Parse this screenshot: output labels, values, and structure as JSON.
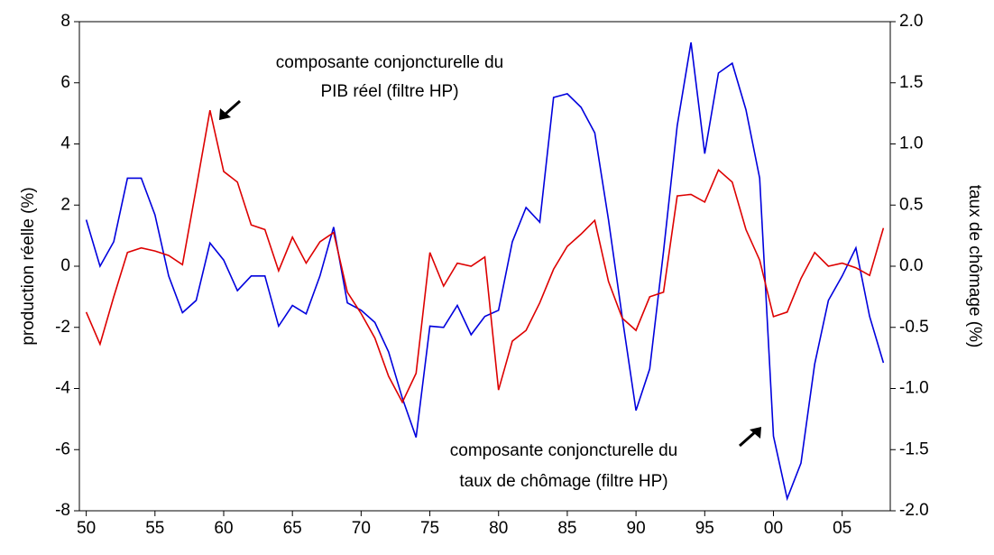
{
  "chart_data": {
    "type": "line",
    "ylabel": "production réelle (%)",
    "y2label": "taux de chômage (%)",
    "x": [
      1950,
      1951,
      1952,
      1953,
      1954,
      1955,
      1956,
      1957,
      1958,
      1959,
      1960,
      1961,
      1962,
      1963,
      1964,
      1965,
      1966,
      1967,
      1968,
      1969,
      1970,
      1971,
      1972,
      1973,
      1974,
      1975,
      1976,
      1977,
      1978,
      1979,
      1980,
      1981,
      1982,
      1983,
      1984,
      1985,
      1986,
      1987,
      1988,
      1989,
      1990,
      1991,
      1992,
      1993,
      1994,
      1995,
      1996,
      1997,
      1998,
      1999,
      2000,
      2001,
      2002,
      2003,
      2004,
      2005,
      2006,
      2007,
      2008
    ],
    "xlim": [
      1949.5,
      2008.5
    ],
    "xticks": [
      {
        "value": 1950,
        "label": "50"
      },
      {
        "value": 1955,
        "label": "55"
      },
      {
        "value": 1960,
        "label": "60"
      },
      {
        "value": 1965,
        "label": "65"
      },
      {
        "value": 1970,
        "label": "70"
      },
      {
        "value": 1975,
        "label": "75"
      },
      {
        "value": 1980,
        "label": "80"
      },
      {
        "value": 1985,
        "label": "85"
      },
      {
        "value": 1990,
        "label": "90"
      },
      {
        "value": 1995,
        "label": "95"
      },
      {
        "value": 2000,
        "label": "00"
      },
      {
        "value": 2005,
        "label": "05"
      }
    ],
    "ylim": [
      -8,
      8
    ],
    "yticks": [
      -8,
      -6,
      -4,
      -2,
      0,
      2,
      4,
      6,
      8
    ],
    "y2lim": [
      -2,
      2
    ],
    "y2ticks": [
      {
        "value": -2,
        "label": "-2.0"
      },
      {
        "value": -1.5,
        "label": "-1.5"
      },
      {
        "value": -1,
        "label": "-1.0"
      },
      {
        "value": -0.5,
        "label": "-0.5"
      },
      {
        "value": 0,
        "label": "0.0"
      },
      {
        "value": 0.5,
        "label": "0.5"
      },
      {
        "value": 1,
        "label": "1.0"
      },
      {
        "value": 1.5,
        "label": "1.5"
      },
      {
        "value": 2,
        "label": "2.0"
      }
    ],
    "series": [
      {
        "color": "#0000dd",
        "axis": "y2",
        "values": [
          0.38,
          0,
          0.2,
          0.72,
          0.72,
          0.42,
          -0.08,
          -0.38,
          -0.28,
          0.19,
          0.05,
          -0.2,
          -0.08,
          -0.08,
          -0.49,
          -0.32,
          -0.39,
          -0.08,
          0.32,
          -0.3,
          -0.36,
          -0.46,
          -0.7,
          -1.08,
          -1.4,
          -0.49,
          -0.5,
          -0.32,
          -0.56,
          -0.41,
          -0.36,
          0.2,
          0.48,
          0.36,
          1.38,
          1.41,
          1.3,
          1.09,
          0.38,
          -0.42,
          -1.18,
          -0.84,
          0.12,
          1.15,
          1.83,
          0.92,
          1.58,
          1.66,
          1.28,
          0.72,
          -1.39,
          -1.9,
          -1.61,
          -0.8,
          -0.28,
          -0.08,
          0.15,
          -0.41,
          -0.79
        ]
      },
      {
        "color": "#dd0000",
        "values": [
          -1.5,
          -2.55,
          -1.0,
          0.45,
          0.6,
          0.5,
          0.35,
          0.05,
          2.55,
          5.1,
          3.1,
          2.75,
          1.35,
          1.2,
          -0.15,
          0.95,
          0.1,
          0.8,
          1.1,
          -0.85,
          -1.55,
          -2.35,
          -3.6,
          -4.45,
          -3.5,
          0.45,
          -0.65,
          0.1,
          0.0,
          0.3,
          -4.05,
          -2.45,
          -2.1,
          -1.2,
          -0.1,
          0.65,
          1.05,
          1.5,
          -0.5,
          -1.7,
          -2.1,
          -1.0,
          -0.85,
          2.3,
          2.35,
          2.1,
          3.15,
          2.75,
          1.2,
          0.2,
          -1.65,
          -1.5,
          -0.4,
          0.45,
          0.0,
          0.1,
          -0.05,
          -0.3,
          1.25
        ]
      }
    ],
    "annotations": [
      {
        "lines": [
          "composante conjoncturelle du",
          "PIB réel (filtre HP)"
        ]
      },
      {
        "lines": [
          "composante conjoncturelle du",
          "taux de chômage (filtre HP)"
        ]
      }
    ]
  }
}
